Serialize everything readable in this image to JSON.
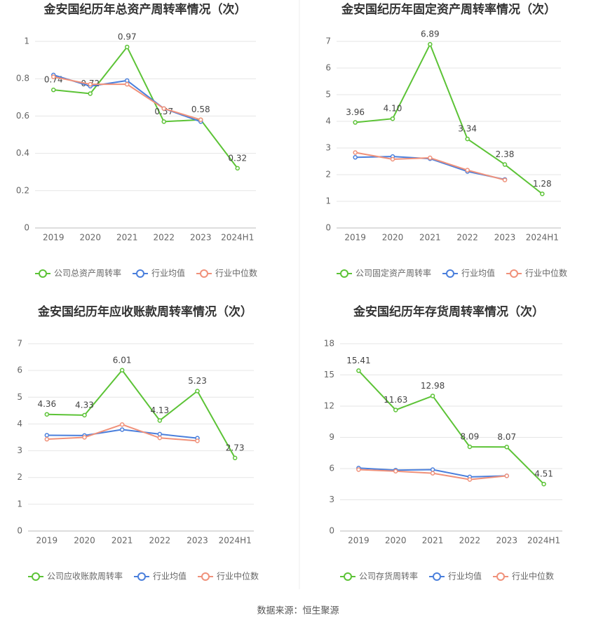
{
  "chart_data": [
    {
      "type": "line",
      "title": "金安国纪历年总资产周转率情况（次）",
      "categories": [
        "2019",
        "2020",
        "2021",
        "2022",
        "2023",
        "2024H1"
      ],
      "ylim": [
        0,
        1
      ],
      "yticks": [
        0,
        0.2,
        0.4,
        0.6,
        0.8,
        1
      ],
      "grid": true,
      "series": [
        {
          "name": "公司总资产周转率",
          "color": "#5cc336",
          "values": [
            0.74,
            0.72,
            0.97,
            0.57,
            0.58,
            0.32
          ],
          "value_labels": [
            "0.74",
            "0.72",
            "0.97",
            "0.57",
            "0.58",
            "0.32"
          ]
        },
        {
          "name": "行业均值",
          "color": "#4a7fdc",
          "values": [
            0.82,
            0.76,
            0.79,
            0.64,
            0.57,
            null
          ]
        },
        {
          "name": "行业中位数",
          "color": "#f0917a",
          "values": [
            0.81,
            0.77,
            0.77,
            0.64,
            0.58,
            null
          ]
        }
      ]
    },
    {
      "type": "line",
      "title": "金安国纪历年固定资产周转率情况（次）",
      "categories": [
        "2019",
        "2020",
        "2021",
        "2022",
        "2023",
        "2024H1"
      ],
      "ylim": [
        0,
        7
      ],
      "yticks": [
        0,
        1,
        2,
        3,
        4,
        5,
        6,
        7
      ],
      "grid": true,
      "series": [
        {
          "name": "公司固定资产周转率",
          "color": "#5cc336",
          "values": [
            3.96,
            4.1,
            6.89,
            3.34,
            2.38,
            1.28
          ],
          "value_labels": [
            "3.96",
            "4.10",
            "6.89",
            "3.34",
            "2.38",
            "1.28"
          ]
        },
        {
          "name": "行业均值",
          "color": "#4a7fdc",
          "values": [
            2.65,
            2.68,
            2.6,
            2.12,
            1.82,
            null
          ]
        },
        {
          "name": "行业中位数",
          "color": "#f0917a",
          "values": [
            2.83,
            2.58,
            2.63,
            2.17,
            1.8,
            null
          ]
        }
      ]
    },
    {
      "type": "line",
      "title": "金安国纪历年应收账款周转率情况（次）",
      "categories": [
        "2019",
        "2020",
        "2021",
        "2022",
        "2023",
        "2024H1"
      ],
      "ylim": [
        0,
        7
      ],
      "yticks": [
        0,
        1,
        2,
        3,
        4,
        5,
        6,
        7
      ],
      "grid": true,
      "series": [
        {
          "name": "公司应收账款周转率",
          "color": "#5cc336",
          "values": [
            4.36,
            4.33,
            6.01,
            4.13,
            5.23,
            2.73
          ],
          "value_labels": [
            "4.36",
            "4.33",
            "6.01",
            "4.13",
            "5.23",
            "2.73"
          ]
        },
        {
          "name": "行业均值",
          "color": "#4a7fdc",
          "values": [
            3.58,
            3.57,
            3.79,
            3.62,
            3.47,
            null
          ]
        },
        {
          "name": "行业中位数",
          "color": "#f0917a",
          "values": [
            3.43,
            3.5,
            3.98,
            3.48,
            3.37,
            null
          ]
        }
      ]
    },
    {
      "type": "line",
      "title": "金安国纪历年存货周转率情况（次）",
      "categories": [
        "2019",
        "2020",
        "2021",
        "2022",
        "2023",
        "2024H1"
      ],
      "ylim": [
        0,
        18
      ],
      "yticks": [
        0,
        3,
        6,
        9,
        12,
        15,
        18
      ],
      "grid": true,
      "series": [
        {
          "name": "公司存货周转率",
          "color": "#5cc336",
          "values": [
            15.41,
            11.63,
            12.98,
            8.09,
            8.07,
            4.51
          ],
          "value_labels": [
            "15.41",
            "11.63",
            "12.98",
            "8.09",
            "8.07",
            "4.51"
          ]
        },
        {
          "name": "行业均值",
          "color": "#4a7fdc",
          "values": [
            6.05,
            5.85,
            5.9,
            5.2,
            5.3,
            null
          ]
        },
        {
          "name": "行业中位数",
          "color": "#f0917a",
          "values": [
            5.9,
            5.75,
            5.55,
            4.95,
            5.3,
            null
          ]
        }
      ]
    }
  ],
  "source": "数据来源：恒生聚源"
}
